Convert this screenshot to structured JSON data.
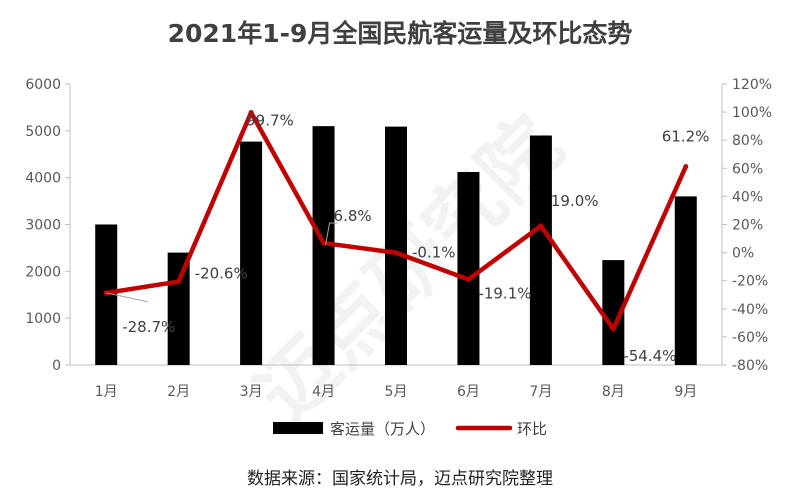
{
  "title": "2021年1-9月全国民航客运量及环比态势",
  "source": "数据来源：国家统计局，迈点研究院整理",
  "watermark": "迈点研究院",
  "chart_data": {
    "type": "bar+line",
    "categories": [
      "1月",
      "2月",
      "3月",
      "4月",
      "5月",
      "6月",
      "7月",
      "8月",
      "9月"
    ],
    "series": [
      {
        "name": "客运量（万人）",
        "type": "bar",
        "axis": "left",
        "color": "#000000",
        "values": [
          3000,
          2400,
          4770,
          5100,
          5090,
          4120,
          4900,
          2240,
          3600
        ]
      },
      {
        "name": "环比",
        "type": "line",
        "axis": "right",
        "color": "#C00000",
        "values": [
          -28.7,
          -20.6,
          99.7,
          6.8,
          -0.1,
          -19.1,
          19.0,
          -54.4,
          61.2
        ],
        "labels": [
          "-28.7%",
          "-20.6%",
          "99.7%",
          "6.8%",
          "-0.1%",
          "-19.1%",
          "19.0%",
          "-54.4%",
          "61.2%"
        ]
      }
    ],
    "y_left": {
      "ylim": [
        0,
        6000
      ],
      "ticks": [
        "0",
        "1000",
        "2000",
        "3000",
        "4000",
        "5000",
        "6000"
      ]
    },
    "y_right": {
      "ylim": [
        -80,
        120
      ],
      "ticks": [
        "-80%",
        "-60%",
        "-40%",
        "-20%",
        "0%",
        "20%",
        "40%",
        "60%",
        "80%",
        "100%",
        "120%"
      ]
    },
    "legend": {
      "position": "bottom",
      "items": [
        "客运量（万人）",
        "环比"
      ]
    },
    "grid": false
  }
}
